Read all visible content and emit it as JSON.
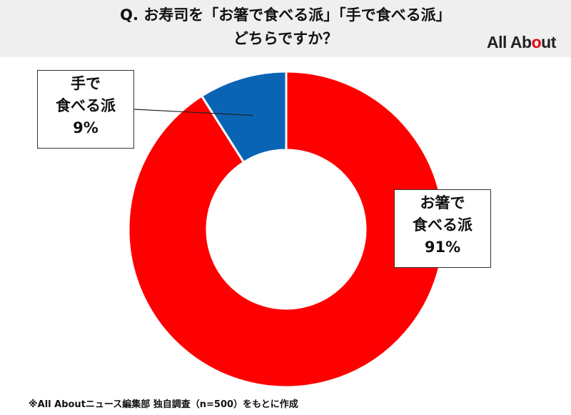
{
  "header": {
    "title_line1": "Q. お寿司を「お箸で食べる派」「手で食べる派」",
    "title_line2": "どちらですか？",
    "logo_text_before": "All Ab",
    "logo_text_o": "o",
    "logo_text_after": "ut"
  },
  "chart_data": {
    "type": "pie",
    "donut": true,
    "start_angle_deg": 0,
    "direction": "clockwise",
    "slices": [
      {
        "label_line1": "手で",
        "label_line2": "食べる派",
        "value_text": "9%",
        "value": 9,
        "color": "#0a64b4"
      },
      {
        "label_line1": "お箸で",
        "label_line2": "食べる派",
        "value_text": "91%",
        "value": 91,
        "color": "#ff0000"
      }
    ]
  },
  "footnote": "※All Aboutニュース編集部 独自調査（n=500）をもとに作成",
  "colors": {
    "header_bg": "#efefef",
    "red": "#ff0000",
    "blue": "#0a64b4",
    "logo_accent": "#e60012"
  }
}
